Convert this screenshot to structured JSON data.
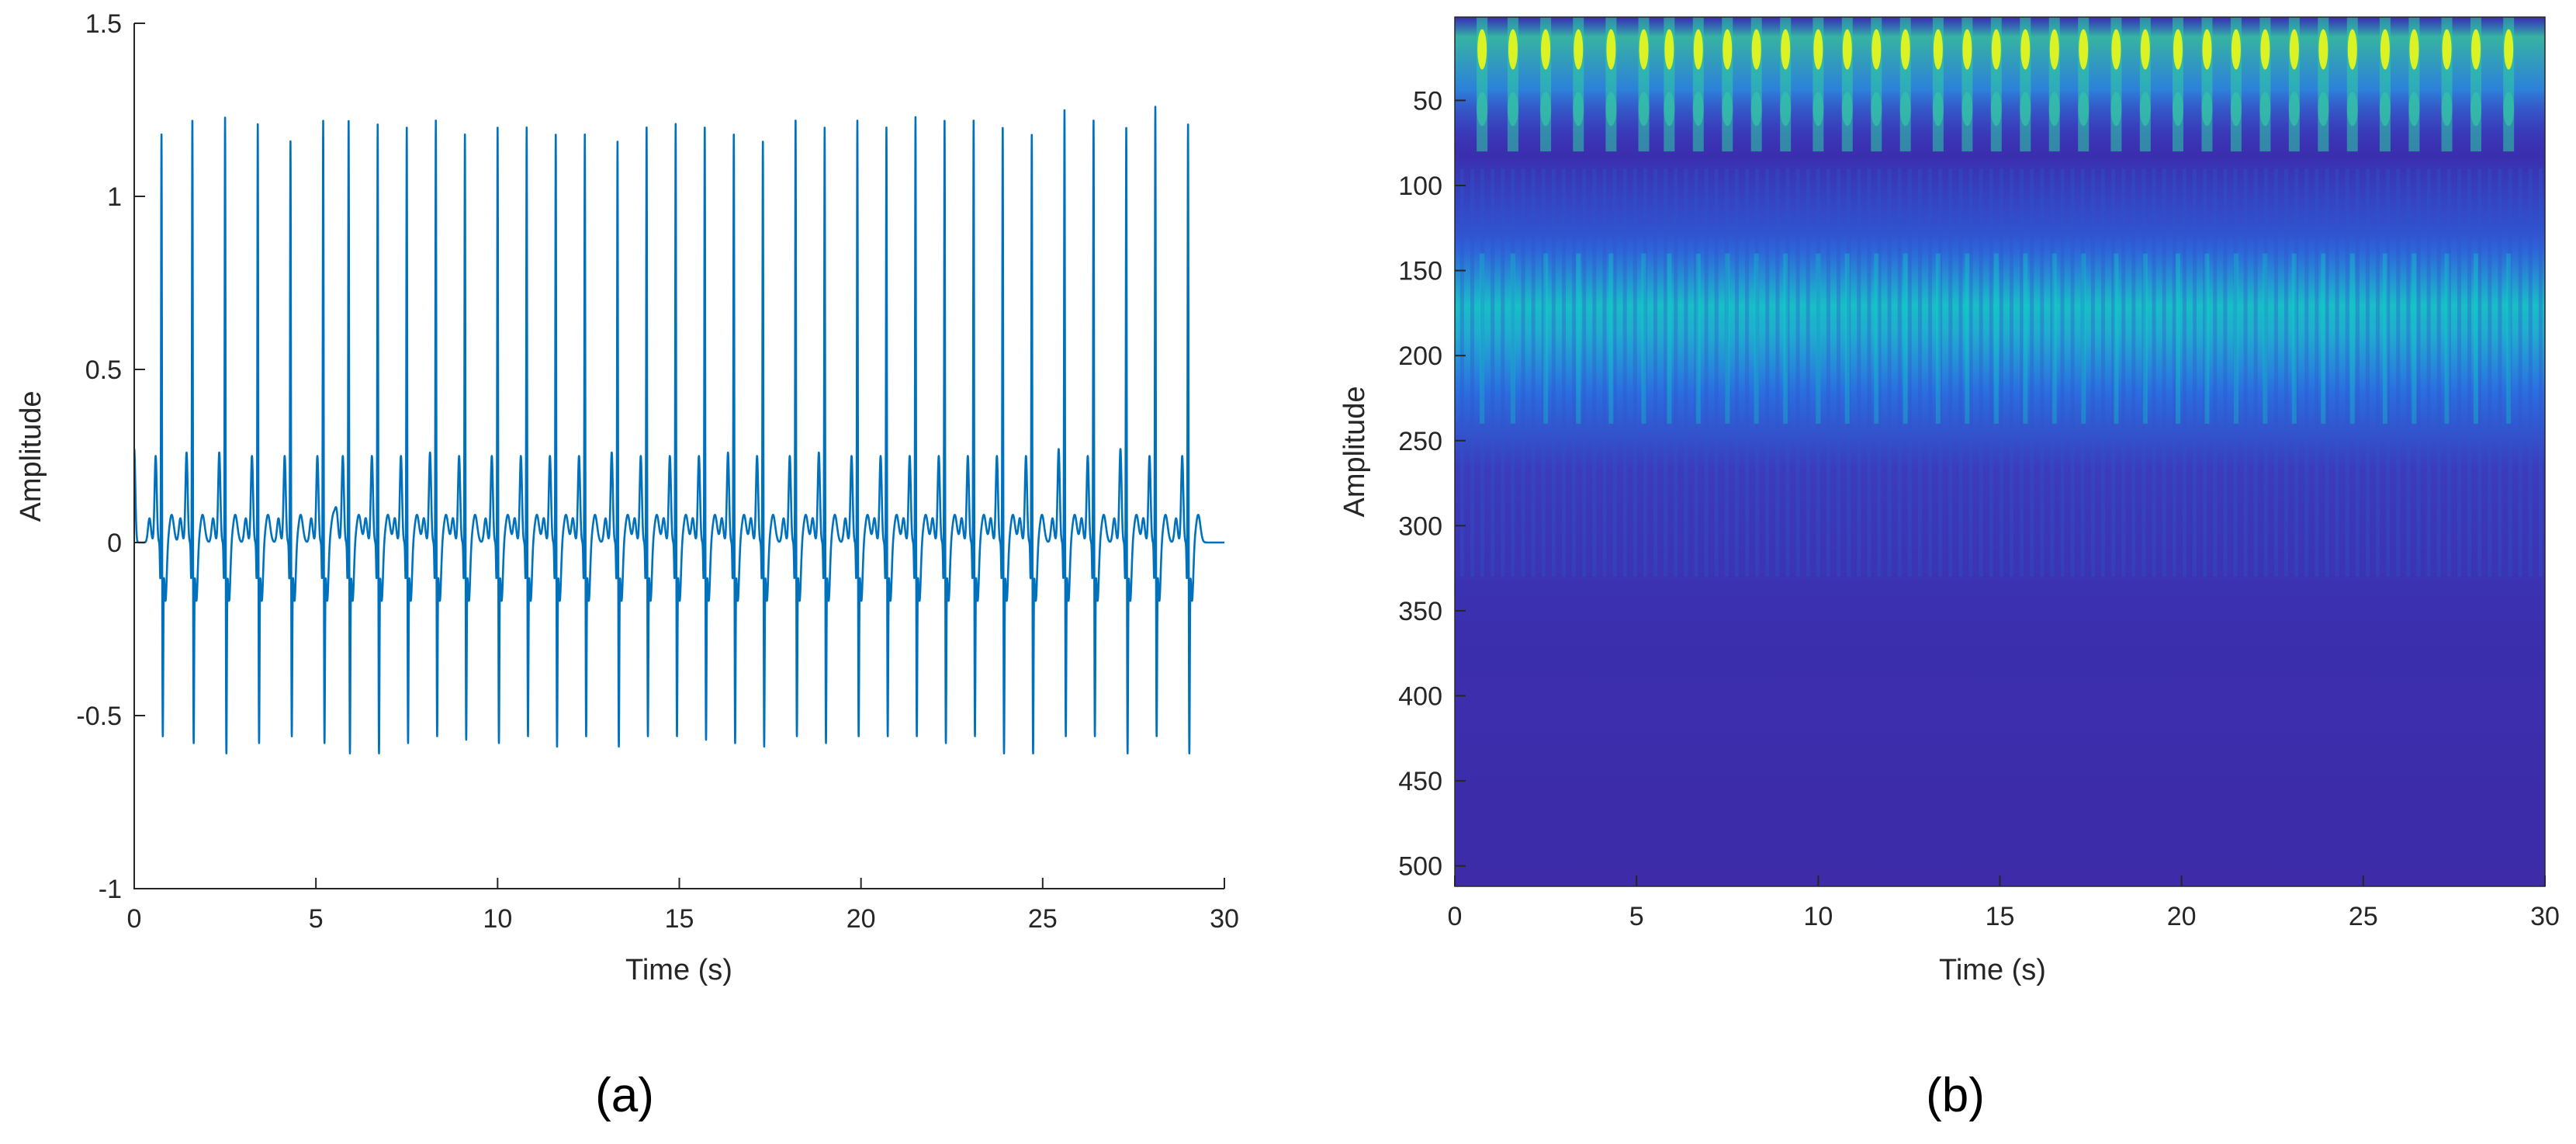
{
  "chart_data": [
    {
      "panel_label": "(a)",
      "type": "line",
      "xlabel": "Time (s)",
      "ylabel": "Amplitude",
      "xlim": [
        0,
        30
      ],
      "ylim": [
        -1,
        1.5
      ],
      "xticks": [
        0,
        5,
        10,
        15,
        20,
        25,
        30
      ],
      "yticks": [
        -1,
        -0.5,
        0,
        0.5,
        1,
        1.5
      ],
      "ytick_labels": [
        "-1",
        "-0.5",
        "0",
        "0.5",
        "1",
        "1.5"
      ],
      "grid": false,
      "series_color": "#0072BD",
      "beats": {
        "times": [
          0.75,
          1.6,
          2.5,
          3.4,
          4.3,
          5.2,
          5.9,
          6.7,
          7.5,
          8.3,
          9.1,
          10.0,
          10.8,
          11.6,
          12.4,
          13.3,
          14.1,
          14.9,
          15.7,
          16.5,
          17.3,
          18.2,
          19.0,
          19.9,
          20.7,
          21.5,
          22.3,
          23.1,
          23.9,
          24.7,
          25.6,
          26.4,
          27.3,
          28.1,
          29.0
        ],
        "r_peaks": [
          1.2,
          1.24,
          1.25,
          1.23,
          1.18,
          1.24,
          1.24,
          1.23,
          1.22,
          1.24,
          1.2,
          1.22,
          1.22,
          1.2,
          1.2,
          1.18,
          1.22,
          1.23,
          1.22,
          1.2,
          1.18,
          1.24,
          1.22,
          1.24,
          1.22,
          1.25,
          1.24,
          1.24,
          1.22,
          1.2,
          1.27,
          1.24,
          1.22,
          1.28,
          1.23
        ],
        "s_troughs": [
          -0.55,
          -0.57,
          -0.6,
          -0.57,
          -0.55,
          -0.57,
          -0.6,
          -0.6,
          -0.57,
          -0.55,
          -0.56,
          -0.57,
          -0.55,
          -0.58,
          -0.55,
          -0.58,
          -0.55,
          -0.55,
          -0.56,
          -0.57,
          -0.58,
          -0.55,
          -0.57,
          -0.55,
          -0.55,
          -0.55,
          -0.57,
          -0.55,
          -0.6,
          -0.6,
          -0.55,
          -0.55,
          -0.6,
          -0.55,
          -0.6
        ],
        "t_peaks": [
          0.25,
          0.26,
          0.26,
          0.25,
          0.25,
          0.25,
          0.25,
          0.25,
          0.25,
          0.26,
          0.25,
          0.25,
          0.25,
          0.25,
          0.25,
          0.26,
          0.25,
          0.25,
          0.25,
          0.26,
          0.25,
          0.25,
          0.26,
          0.25,
          0.25,
          0.25,
          0.25,
          0.25,
          0.25,
          0.25,
          0.27,
          0.25,
          0.27,
          0.25,
          0.25
        ]
      }
    },
    {
      "panel_label": "(b)",
      "type": "heatmap",
      "xlabel": "Time (s)",
      "ylabel": "Amplitude",
      "xlim": [
        0,
        30
      ],
      "ylim": [
        512,
        1
      ],
      "xticks": [
        0,
        5,
        10,
        15,
        20,
        25,
        30
      ],
      "yticks": [
        50,
        100,
        150,
        200,
        250,
        300,
        350,
        400,
        450,
        500
      ],
      "colormap": "parula",
      "colors": {
        "low": "#3E26A8",
        "mid": "#1FA8C8",
        "high": "#F9FB0E"
      },
      "bands": [
        {
          "scale_from": 1,
          "scale_to": 80,
          "intensity": 0.8
        },
        {
          "scale_from": 140,
          "scale_to": 235,
          "intensity": 0.55
        }
      ],
      "column_times": [
        0.75,
        1.6,
        2.5,
        3.4,
        4.3,
        5.2,
        5.9,
        6.7,
        7.5,
        8.3,
        9.1,
        10.0,
        10.8,
        11.6,
        12.4,
        13.3,
        14.1,
        14.9,
        15.7,
        16.5,
        17.3,
        18.2,
        19.0,
        19.9,
        20.7,
        21.5,
        22.3,
        23.1,
        23.9,
        24.7,
        25.6,
        26.4,
        27.3,
        28.1,
        29.0
      ]
    }
  ]
}
